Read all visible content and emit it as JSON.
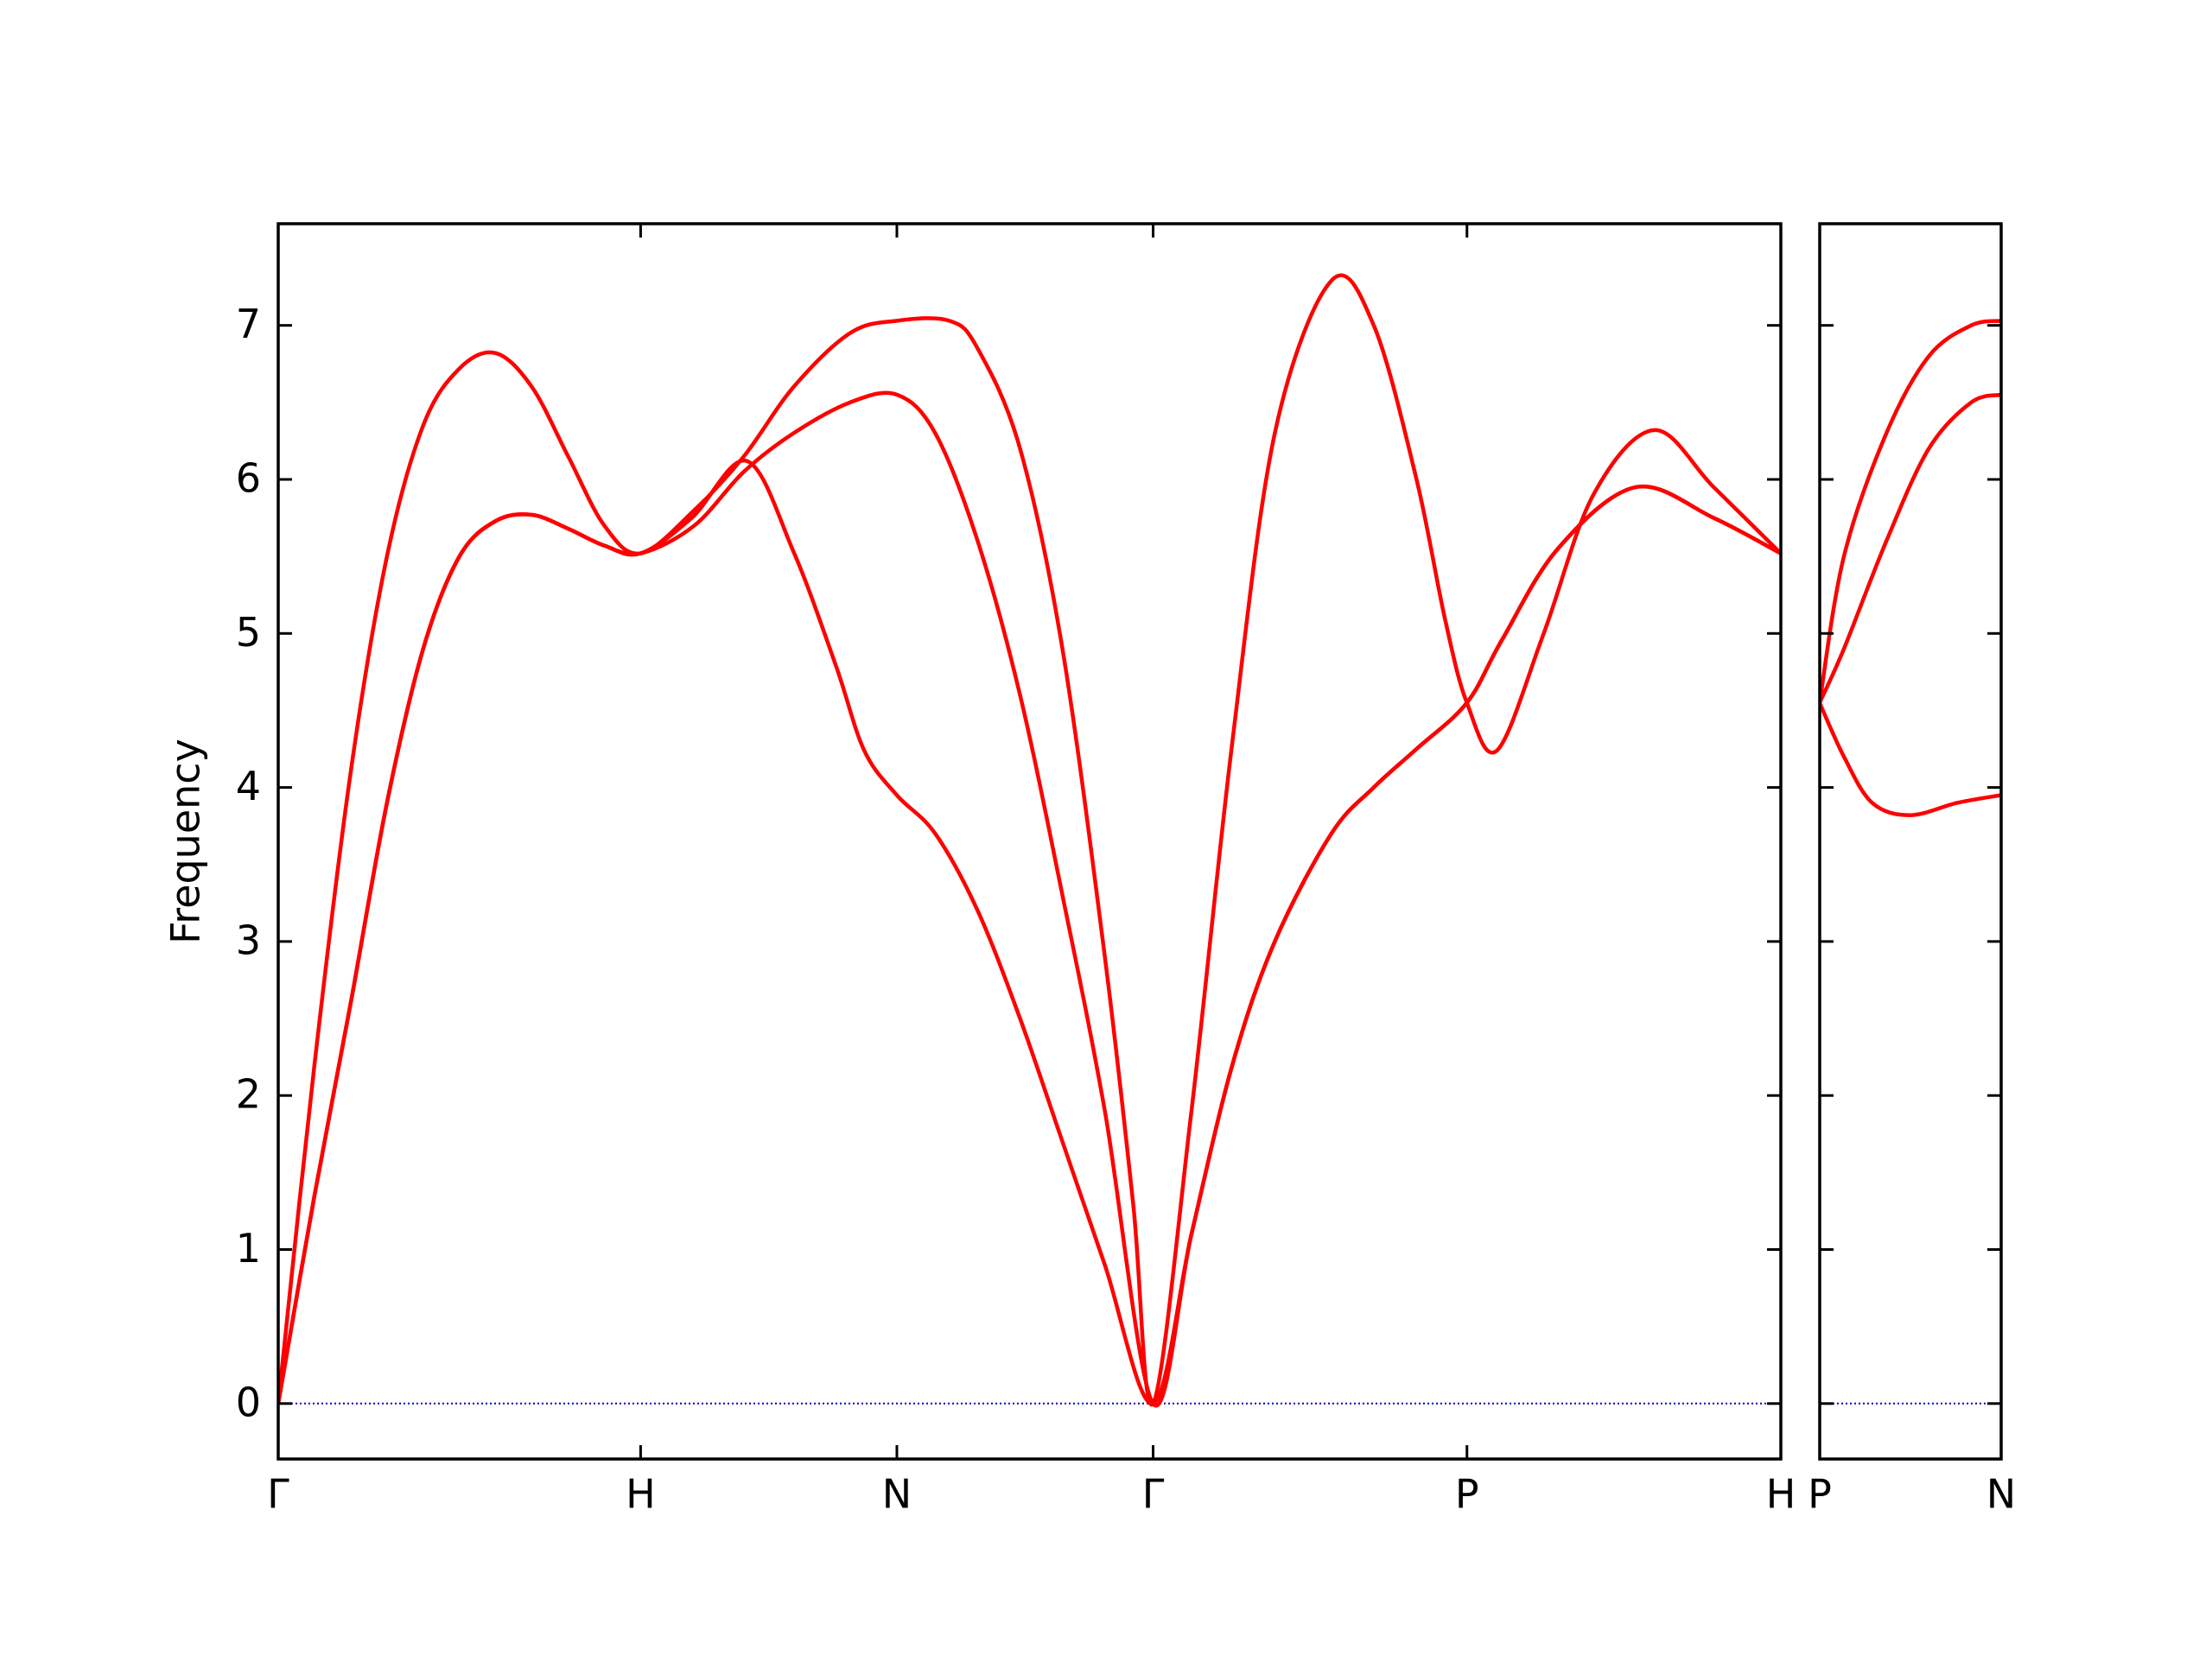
{
  "chart_data": [
    {
      "type": "line",
      "ylabel": "Frequency",
      "xlim": [
        0,
        4.1463
      ],
      "ylim": [
        -0.36,
        7.66
      ],
      "xticks": [
        {
          "value": 0,
          "label": "Γ"
        },
        {
          "value": 1,
          "label": "H"
        },
        {
          "value": 1.7071,
          "label": "N"
        },
        {
          "value": 2.4142,
          "label": "Γ"
        },
        {
          "value": 3.2802,
          "label": "P"
        },
        {
          "value": 4.1463,
          "label": "H"
        }
      ],
      "yticks": [
        0,
        1,
        2,
        3,
        4,
        5,
        6,
        7
      ],
      "ytick_labels": true,
      "hline": {
        "y": 0,
        "color": "#0000cc"
      },
      "series": [
        {
          "color": "#ff0000",
          "x": [
            0,
            0.1,
            0.2,
            0.3,
            0.4,
            0.5,
            0.6,
            0.7,
            0.8,
            0.9,
            1.0,
            1.141,
            1.293,
            1.422,
            1.539,
            1.617,
            1.707,
            1.813,
            1.93,
            2.047,
            2.164,
            2.281,
            2.414,
            2.52,
            2.633,
            2.75,
            2.906,
            3.023,
            3.141,
            3.28,
            3.375,
            3.531,
            3.746,
            3.961,
            4.146
          ],
          "values": [
            0,
            1.35,
            2.6,
            3.9,
            4.9,
            5.5,
            5.73,
            5.77,
            5.68,
            5.57,
            5.52,
            5.75,
            6.12,
            5.53,
            4.79,
            4.24,
            3.95,
            3.7,
            3.2,
            2.5,
            1.7,
            0.9,
            0,
            1.1,
            2.2,
            3.0,
            3.7,
            4.0,
            4.25,
            4.55,
            4.95,
            5.55,
            5.95,
            5.75,
            5.52
          ]
        },
        {
          "color": "#ff0000",
          "x": [
            0,
            0.1,
            0.2,
            0.3,
            0.4,
            0.5,
            0.6,
            0.7,
            0.8,
            0.9,
            1.0,
            1.148,
            1.285,
            1.422,
            1.578,
            1.707,
            1.813,
            1.93,
            2.047,
            2.164,
            2.281,
            2.414,
            2.52,
            2.633,
            2.75,
            2.906,
            3.023,
            3.141,
            3.28,
            3.375,
            3.531,
            3.746,
            3.961,
            4.146
          ],
          "values": [
            0,
            1.35,
            2.6,
            3.9,
            4.9,
            5.5,
            5.73,
            5.77,
            5.68,
            5.57,
            5.52,
            5.7,
            6.05,
            6.3,
            6.5,
            6.55,
            6.3,
            5.6,
            4.6,
            3.3,
            1.9,
            0,
            1.1,
            2.2,
            3.0,
            3.7,
            4.0,
            4.25,
            4.55,
            4.95,
            5.55,
            5.95,
            5.75,
            5.52
          ]
        },
        {
          "color": "#ff0000",
          "x": [
            0,
            0.1,
            0.2,
            0.3,
            0.4,
            0.5,
            0.6,
            0.7,
            0.8,
            0.9,
            1.0,
            1.148,
            1.285,
            1.422,
            1.578,
            1.707,
            1.852,
            1.93,
            2.047,
            2.164,
            2.281,
            2.359,
            2.414,
            2.52,
            2.633,
            2.75,
            2.906,
            3.023,
            3.141,
            3.219,
            3.28,
            3.363,
            3.492,
            3.629,
            3.797,
            3.961,
            4.146
          ],
          "values": [
            0,
            2.2,
            4.1,
            5.5,
            6.35,
            6.72,
            6.82,
            6.6,
            6.15,
            5.7,
            5.52,
            5.8,
            6.15,
            6.6,
            6.95,
            7.03,
            7.03,
            6.85,
            6.2,
            4.9,
            2.9,
            1.3,
            0,
            1.9,
            4.3,
            6.3,
            7.29,
            7.0,
            6.0,
            5.1,
            4.55,
            4.24,
            5.0,
            5.9,
            6.32,
            5.95,
            5.52
          ]
        }
      ]
    },
    {
      "type": "line",
      "xlim": [
        4.1463,
        4.6463
      ],
      "ylim": [
        -0.36,
        7.66
      ],
      "xticks": [
        {
          "value": 4.1463,
          "label": "P"
        },
        {
          "value": 4.6463,
          "label": "N"
        }
      ],
      "yticks": [
        0,
        1,
        2,
        3,
        4,
        5,
        6,
        7
      ],
      "ytick_labels": false,
      "hline": {
        "y": 0,
        "color": "#0000cc"
      },
      "series": [
        {
          "color": "#ff0000",
          "x": [
            4.146,
            4.213,
            4.291,
            4.396,
            4.525,
            4.646
          ],
          "values": [
            4.55,
            4.2,
            3.9,
            3.82,
            3.9,
            3.95
          ]
        },
        {
          "color": "#ff0000",
          "x": [
            4.146,
            4.213,
            4.33,
            4.447,
            4.564,
            4.646
          ],
          "values": [
            4.55,
            4.9,
            5.6,
            6.2,
            6.5,
            6.55
          ]
        },
        {
          "color": "#ff0000",
          "x": [
            4.146,
            4.213,
            4.33,
            4.447,
            4.564,
            4.646
          ],
          "values": [
            4.55,
            5.5,
            6.3,
            6.8,
            7.0,
            7.03
          ]
        }
      ]
    }
  ]
}
